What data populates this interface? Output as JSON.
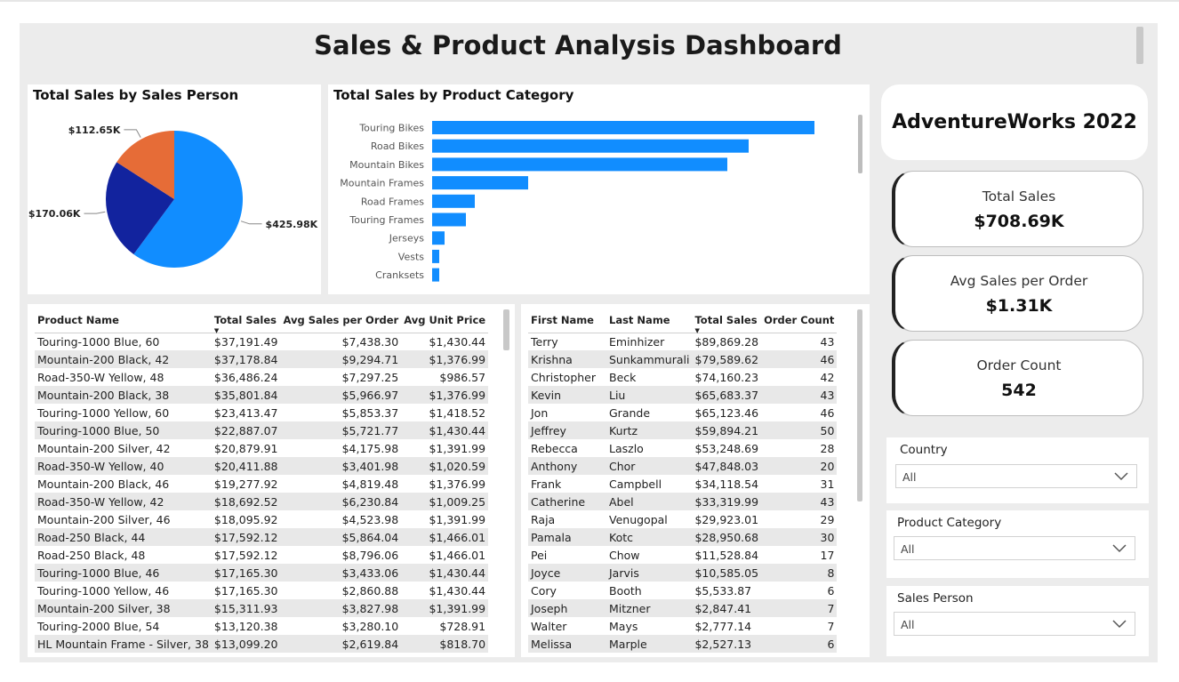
{
  "dashboard": {
    "title": "Sales & Product Analysis Dashboard"
  },
  "pie": {
    "title": "Total Sales by Sales Person",
    "slices": [
      {
        "label": "$425.98K",
        "value": 425.98,
        "color": "#118DFF"
      },
      {
        "label": "$170.06K",
        "value": 170.06,
        "color": "#12239E"
      },
      {
        "label": "$112.65K",
        "value": 112.65,
        "color": "#E66C37"
      }
    ]
  },
  "chart_data": {
    "type": "bar",
    "title": "Total Sales by Product Category",
    "orientation": "horizontal",
    "categories": [
      "Touring Bikes",
      "Road Bikes",
      "Mountain Bikes",
      "Mountain Frames",
      "Road Frames",
      "Touring Frames",
      "Jerseys",
      "Vests",
      "Cranksets"
    ],
    "values": [
      215,
      178,
      166,
      54,
      24,
      19,
      7,
      4,
      4
    ],
    "color": "#118DFF",
    "grid": false,
    "legend": "none"
  },
  "products": {
    "headers": [
      "Product Name",
      "Total Sales",
      "Avg Sales per Order",
      "Avg Unit Price"
    ],
    "rows": [
      [
        "Touring-1000 Blue, 60",
        "$37,191.49",
        "$7,438.30",
        "$1,430.44"
      ],
      [
        "Mountain-200 Black, 42",
        "$37,178.84",
        "$9,294.71",
        "$1,376.99"
      ],
      [
        "Road-350-W Yellow, 48",
        "$36,486.24",
        "$7,297.25",
        "$986.57"
      ],
      [
        "Mountain-200 Black, 38",
        "$35,801.84",
        "$5,966.97",
        "$1,376.99"
      ],
      [
        "Touring-1000 Yellow, 60",
        "$23,413.47",
        "$5,853.37",
        "$1,418.52"
      ],
      [
        "Touring-1000 Blue, 50",
        "$22,887.07",
        "$5,721.77",
        "$1,430.44"
      ],
      [
        "Mountain-200 Silver, 42",
        "$20,879.91",
        "$4,175.98",
        "$1,391.99"
      ],
      [
        "Road-350-W Yellow, 40",
        "$20,411.88",
        "$3,401.98",
        "$1,020.59"
      ],
      [
        "Mountain-200 Black, 46",
        "$19,277.92",
        "$4,819.48",
        "$1,376.99"
      ],
      [
        "Road-350-W Yellow, 42",
        "$18,692.52",
        "$6,230.84",
        "$1,009.25"
      ],
      [
        "Mountain-200 Silver, 46",
        "$18,095.92",
        "$4,523.98",
        "$1,391.99"
      ],
      [
        "Road-250 Black, 44",
        "$17,592.12",
        "$5,864.04",
        "$1,466.01"
      ],
      [
        "Road-250 Black, 48",
        "$17,592.12",
        "$8,796.06",
        "$1,466.01"
      ],
      [
        "Touring-1000 Blue, 46",
        "$17,165.30",
        "$3,433.06",
        "$1,430.44"
      ],
      [
        "Touring-1000 Yellow, 46",
        "$17,165.30",
        "$2,860.88",
        "$1,430.44"
      ],
      [
        "Mountain-200 Silver, 38",
        "$15,311.93",
        "$3,827.98",
        "$1,391.99"
      ],
      [
        "Touring-2000 Blue, 54",
        "$13,120.38",
        "$3,280.10",
        "$728.91"
      ],
      [
        "HL Mountain Frame - Silver, 38",
        "$13,099.20",
        "$2,619.84",
        "$818.70"
      ]
    ]
  },
  "salespeople": {
    "headers": [
      "First Name",
      "Last Name",
      "Total Sales",
      "Order Count"
    ],
    "rows": [
      [
        "Terry",
        "Eminhizer",
        "$89,869.28",
        "43"
      ],
      [
        "Krishna",
        "Sunkammurali",
        "$79,589.62",
        "46"
      ],
      [
        "Christopher",
        "Beck",
        "$74,160.23",
        "42"
      ],
      [
        "Kevin",
        "Liu",
        "$65,683.37",
        "43"
      ],
      [
        "Jon",
        "Grande",
        "$65,123.46",
        "46"
      ],
      [
        "Jeffrey",
        "Kurtz",
        "$59,894.21",
        "50"
      ],
      [
        "Rebecca",
        "Laszlo",
        "$53,248.69",
        "28"
      ],
      [
        "Anthony",
        "Chor",
        "$47,848.03",
        "20"
      ],
      [
        "Frank",
        "Campbell",
        "$34,118.54",
        "31"
      ],
      [
        "Catherine",
        "Abel",
        "$33,319.99",
        "43"
      ],
      [
        "Raja",
        "Venugopal",
        "$29,923.01",
        "29"
      ],
      [
        "Pamala",
        "Kotc",
        "$28,950.68",
        "30"
      ],
      [
        "Pei",
        "Chow",
        "$11,528.84",
        "17"
      ],
      [
        "Joyce",
        "Jarvis",
        "$10,585.05",
        "8"
      ],
      [
        "Cory",
        "Booth",
        "$5,533.87",
        "6"
      ],
      [
        "Joseph",
        "Mitzner",
        "$2,847.41",
        "7"
      ],
      [
        "Walter",
        "Mays",
        "$2,777.14",
        "7"
      ],
      [
        "Melissa",
        "Marple",
        "$2,527.13",
        "6"
      ]
    ]
  },
  "brand": {
    "title": "AdventureWorks 2022"
  },
  "kpis": [
    {
      "label": "Total Sales",
      "value": "$708.69K"
    },
    {
      "label": "Avg Sales per Order",
      "value": "$1.31K"
    },
    {
      "label": "Order Count",
      "value": "542"
    }
  ],
  "slicers": [
    {
      "label": "Country",
      "value": "All"
    },
    {
      "label": "Product Category",
      "value": "All"
    },
    {
      "label": "Sales Person",
      "value": "All"
    }
  ]
}
